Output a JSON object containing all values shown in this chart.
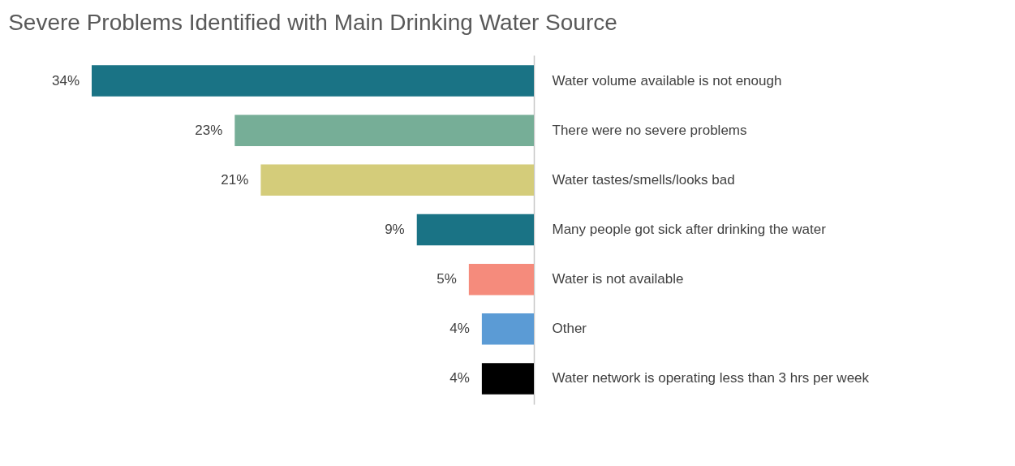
{
  "chart_data": {
    "type": "bar",
    "orientation": "horizontal",
    "title": "Severe Problems Identified with Main Drinking Water Source",
    "categories": [
      "Water volume available is not enough",
      "There were no severe problems",
      "Water tastes/smells/looks bad",
      "Many people got sick after drinking the water",
      "Water is not available",
      "Other",
      "Water network is operating less than 3 hrs per week"
    ],
    "values": [
      34,
      23,
      21,
      9,
      5,
      4,
      4
    ],
    "colors": [
      "#1a7385",
      "#76ae97",
      "#d4cc7a",
      "#1a7385",
      "#f58b7c",
      "#5b9bd5",
      "#000000"
    ],
    "value_labels": [
      "34%",
      "23%",
      "21%",
      "9%",
      "5%",
      "4%",
      "4%"
    ],
    "xlim": [
      34,
      0
    ],
    "tick_labels": "y",
    "grid": false
  }
}
